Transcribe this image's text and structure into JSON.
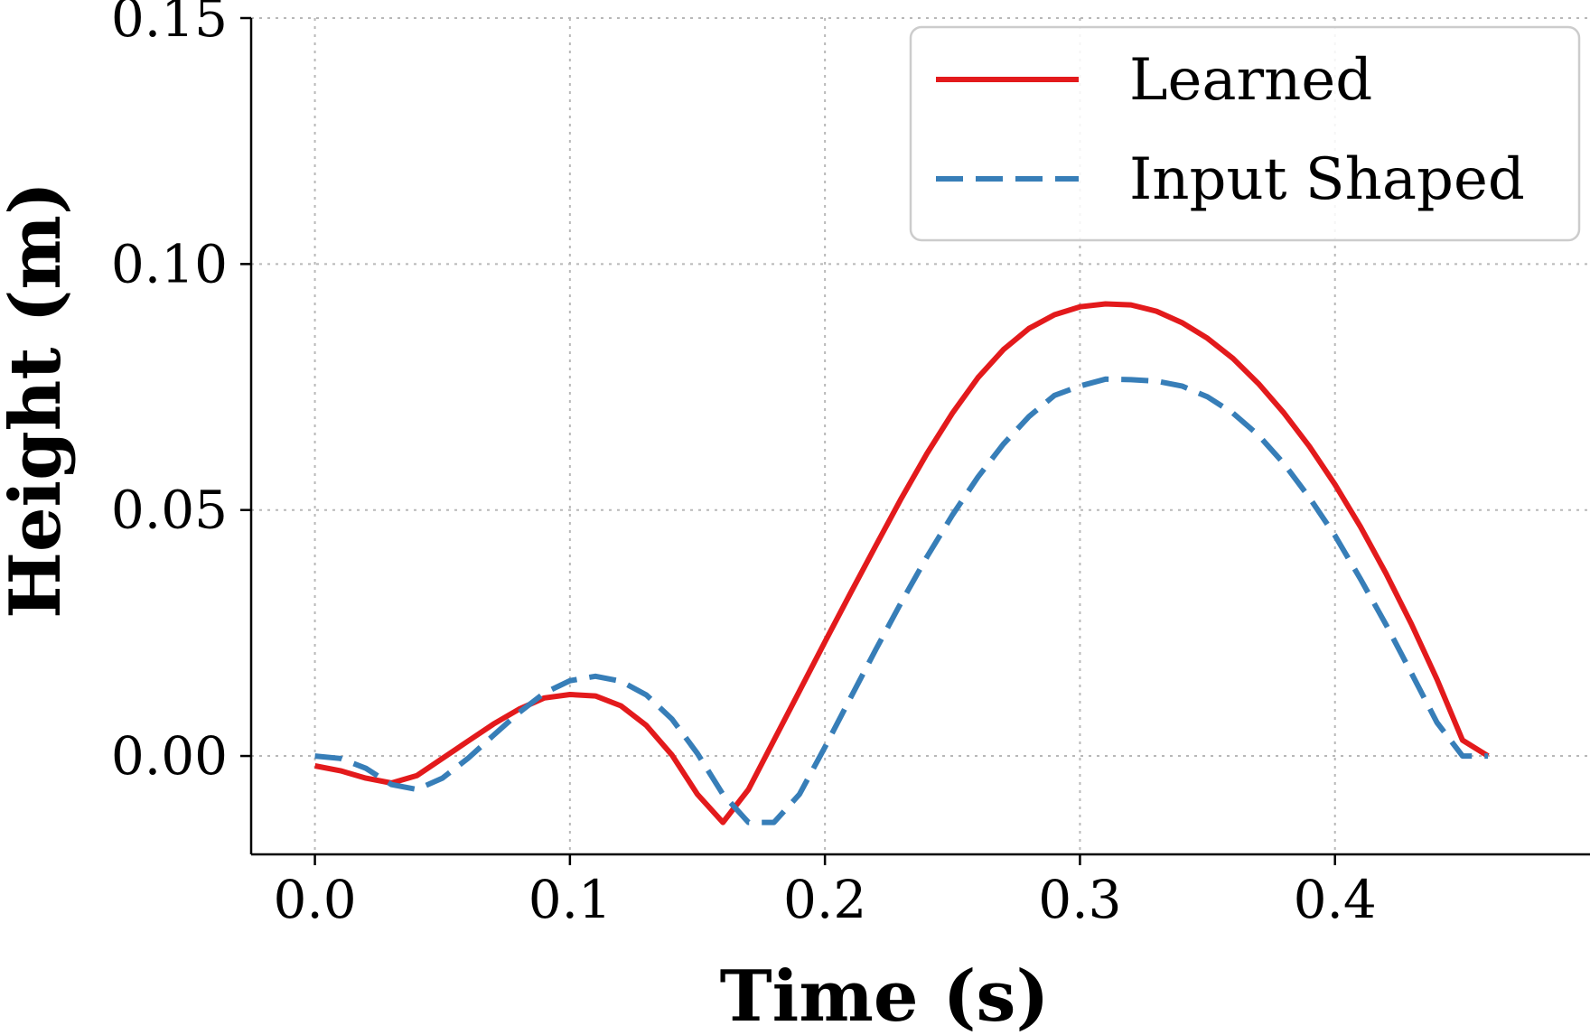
{
  "chart_data": {
    "type": "line",
    "xlabel": "Time (s)",
    "ylabel": "Height (m)",
    "xlim": [
      -0.025,
      0.5
    ],
    "ylim": [
      -0.02,
      0.15
    ],
    "xticks": [
      0.0,
      0.1,
      0.2,
      0.3,
      0.4
    ],
    "xtick_labels": [
      "0.0",
      "0.1",
      "0.2",
      "0.3",
      "0.4"
    ],
    "yticks": [
      0.0,
      0.05,
      0.1,
      0.15
    ],
    "ytick_labels": [
      "0.00",
      "0.05",
      "0.10",
      "0.15"
    ],
    "grid": true,
    "legend_position": "top-right",
    "series": [
      {
        "name": "Learned",
        "color": "#e31a1c",
        "style": "solid",
        "x": [
          0.0,
          0.01,
          0.02,
          0.03,
          0.04,
          0.05,
          0.06,
          0.07,
          0.08,
          0.09,
          0.1,
          0.11,
          0.12,
          0.13,
          0.14,
          0.15,
          0.16,
          0.17,
          0.18,
          0.19,
          0.2,
          0.21,
          0.22,
          0.23,
          0.24,
          0.25,
          0.26,
          0.27,
          0.28,
          0.29,
          0.3,
          0.31,
          0.32,
          0.33,
          0.34,
          0.35,
          0.36,
          0.37,
          0.38,
          0.39,
          0.4,
          0.41,
          0.42,
          0.43,
          0.44,
          0.45,
          0.46
        ],
        "y": [
          -0.002,
          -0.003,
          -0.0045,
          -0.0055,
          -0.004,
          -0.0005,
          0.003,
          0.0065,
          0.0095,
          0.0118,
          0.0125,
          0.0122,
          0.0102,
          0.0062,
          0.0002,
          -0.0078,
          -0.0135,
          -0.0068,
          0.0032,
          0.0132,
          0.0232,
          0.0331,
          0.0428,
          0.0524,
          0.0615,
          0.0697,
          0.0769,
          0.0826,
          0.0869,
          0.0897,
          0.0913,
          0.0919,
          0.0917,
          0.0904,
          0.0881,
          0.0849,
          0.0808,
          0.0757,
          0.0697,
          0.0629,
          0.0552,
          0.0466,
          0.0371,
          0.0268,
          0.0156,
          0.0032,
          -0.0
        ],
        "y_tail": 0.0005
      },
      {
        "name": "Input Shaped",
        "color": "#377eb8",
        "style": "dashed",
        "x": [
          0.0,
          0.01,
          0.02,
          0.03,
          0.04,
          0.05,
          0.06,
          0.07,
          0.08,
          0.09,
          0.1,
          0.11,
          0.12,
          0.13,
          0.14,
          0.15,
          0.16,
          0.17,
          0.18,
          0.19,
          0.2,
          0.21,
          0.22,
          0.23,
          0.24,
          0.25,
          0.26,
          0.27,
          0.28,
          0.29,
          0.3,
          0.31,
          0.32,
          0.33,
          0.34,
          0.35,
          0.36,
          0.37,
          0.38,
          0.39,
          0.4,
          0.41,
          0.42,
          0.43,
          0.44,
          0.45,
          0.46
        ],
        "y": [
          0.0,
          -0.0005,
          -0.0025,
          -0.0058,
          -0.0068,
          -0.0045,
          -0.0005,
          0.0042,
          0.0088,
          0.0128,
          0.0153,
          0.0162,
          0.0152,
          0.0124,
          0.0075,
          0.0005,
          -0.0078,
          -0.0135,
          -0.0135,
          -0.0078,
          0.0018,
          0.0118,
          0.0217,
          0.0313,
          0.0405,
          0.049,
          0.0567,
          0.0634,
          0.069,
          0.0733,
          0.0752,
          0.0766,
          0.0765,
          0.0762,
          0.0752,
          0.073,
          0.0697,
          0.0652,
          0.0594,
          0.0525,
          0.0448,
          0.036,
          0.0267,
          0.0168,
          0.0068,
          0.0,
          0.0
        ]
      }
    ]
  }
}
